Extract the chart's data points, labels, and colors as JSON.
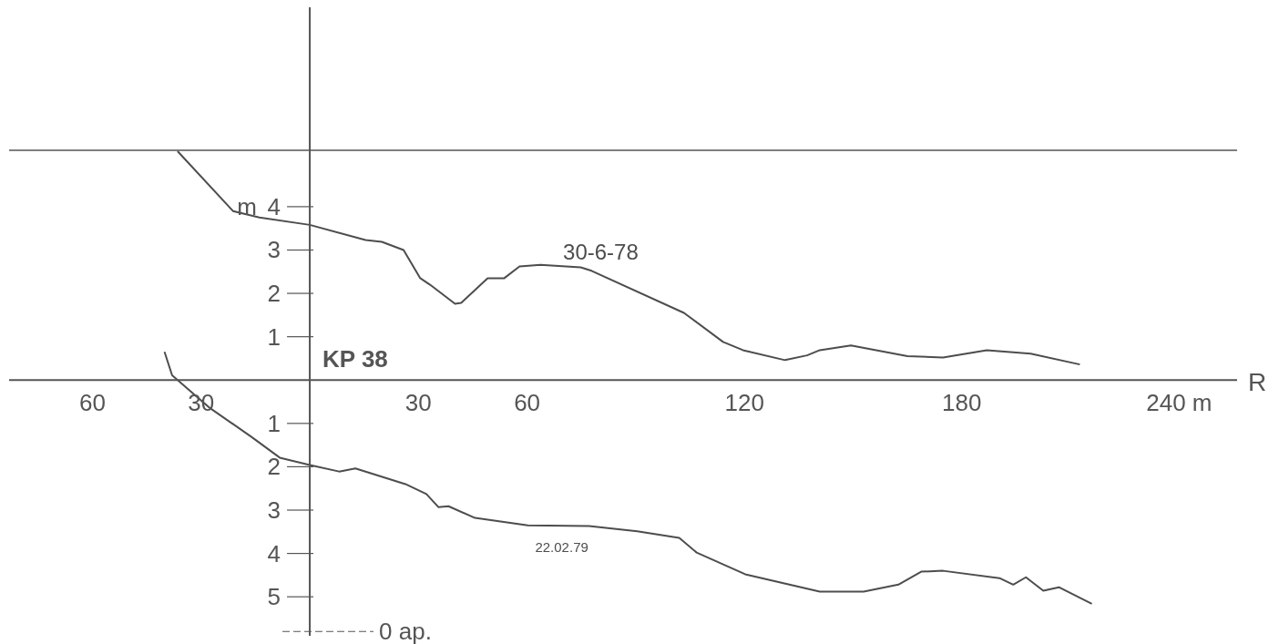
{
  "chart_data": {
    "type": "line",
    "xlabel": "R",
    "ylabel": "m",
    "annotations": [
      "KP 38"
    ],
    "xlim": [
      -83,
      256
    ],
    "ylim": [
      -5.9,
      8.6
    ],
    "xticks": [
      {
        "value": -60,
        "label": "60"
      },
      {
        "value": -30,
        "label": "30"
      },
      30,
      60,
      120,
      180,
      {
        "value": 240,
        "label": "240 m"
      }
    ],
    "yticks": [
      {
        "value": -5,
        "label": "5"
      },
      {
        "value": -4,
        "label": "4"
      },
      {
        "value": -3,
        "label": "3"
      },
      {
        "value": -2,
        "label": "2"
      },
      {
        "value": -1,
        "label": "1"
      },
      1,
      2,
      3,
      4
    ],
    "ref_lines": [
      {
        "axis": "y",
        "value": 5.3,
        "color": "#555555"
      },
      {
        "axis": "y",
        "value": -5.8,
        "label": "0 ap.",
        "color": "#555555",
        "line_style": "dashed"
      }
    ],
    "series": [
      {
        "name": "30-6-78",
        "color": "#4d4d4d",
        "x": [
          -36.5,
          -21.2,
          -13.9,
          0,
          15.4,
          19.9,
          25.9,
          30.5,
          33.2,
          40.1,
          41.8,
          49.1,
          53.7,
          57.9,
          63.7,
          74.8,
          77.8,
          103.3,
          114.1,
          119.6,
          131.2,
          137.3,
          140.8,
          149.4,
          165,
          174.8,
          186.9,
          199,
          212.6
        ],
        "values": [
          5.28,
          3.9,
          3.75,
          3.58,
          3.23,
          3.19,
          3.0,
          2.35,
          2.2,
          1.76,
          1.78,
          2.35,
          2.35,
          2.62,
          2.66,
          2.6,
          2.52,
          1.55,
          0.88,
          0.69,
          0.46,
          0.57,
          0.69,
          0.8,
          0.55,
          0.52,
          0.69,
          0.61,
          0.36
        ]
      },
      {
        "name": "22.02.79",
        "color": "#4d4d4d",
        "x": [
          -40.1,
          -38,
          -27.5,
          -16.1,
          -8.3,
          0,
          8.1,
          12.6,
          26.4,
          32.2,
          35.5,
          38.3,
          45.6,
          60.2,
          77.1,
          90.4,
          102,
          106.8,
          120.2,
          140.8,
          152.9,
          162.5,
          168.8,
          174.8,
          190.4,
          194.2,
          197.7,
          202.5,
          206.8,
          215.9
        ],
        "values": [
          0.65,
          0.11,
          -0.65,
          -1.31,
          -1.79,
          -1.96,
          -2.11,
          -2.04,
          -2.4,
          -2.63,
          -2.93,
          -2.91,
          -3.18,
          -3.35,
          -3.37,
          -3.49,
          -3.64,
          -3.98,
          -4.48,
          -4.88,
          -4.88,
          -4.72,
          -4.42,
          -4.4,
          -4.57,
          -4.72,
          -4.55,
          -4.86,
          -4.78,
          -5.16
        ]
      }
    ]
  }
}
